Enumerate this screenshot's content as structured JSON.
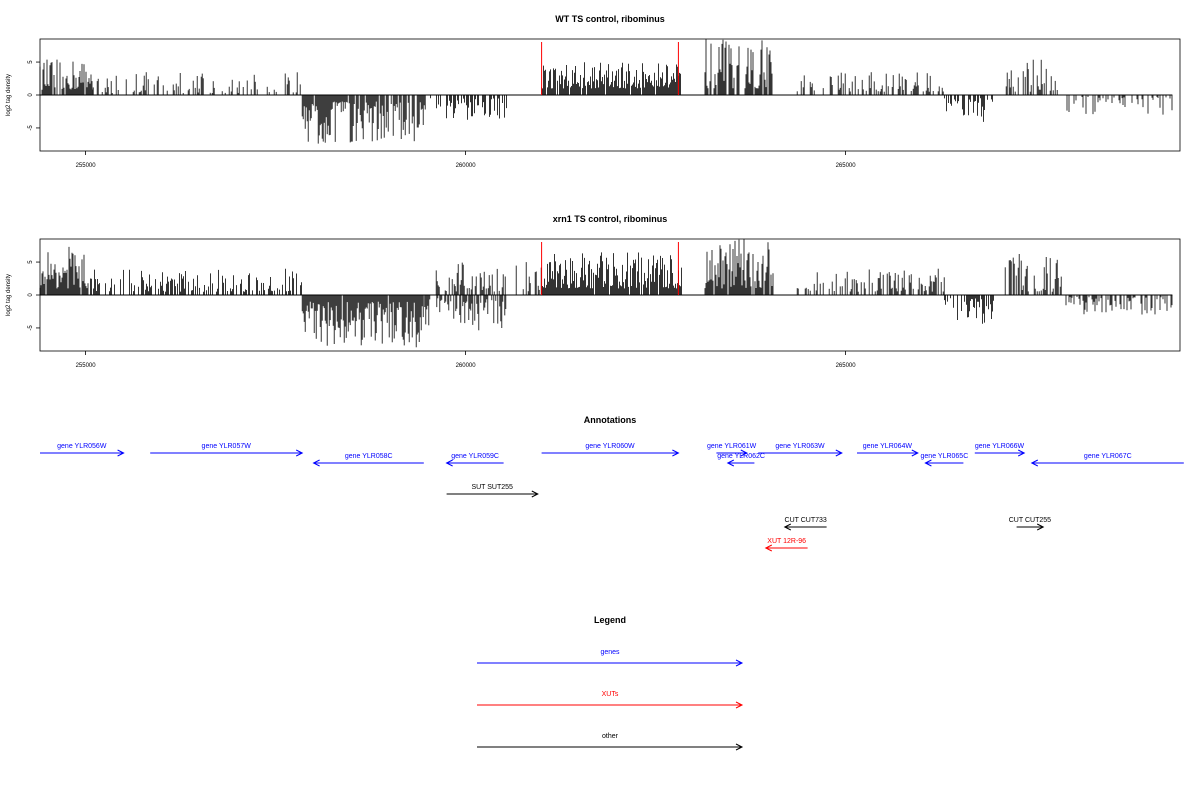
{
  "colors": {
    "gene": "#0000ff",
    "xut": "#ff0000",
    "other": "#000000",
    "marker": "#ff0000"
  },
  "chart_data": [
    {
      "type": "bar",
      "title": "WT TS control, ribominus",
      "ylabel": "log2 tag density",
      "xlim": [
        254400,
        269400
      ],
      "ylim": [
        -8.5,
        8.5
      ],
      "xticks": [
        255000,
        260000,
        265000
      ],
      "yticks": [
        -5,
        0,
        5
      ],
      "markers_x": [
        261000,
        262800
      ],
      "series_segments": [
        {
          "from": 254400,
          "to": 255100,
          "min": 0.8,
          "max": 5.5,
          "sign": 1,
          "density": 0.85
        },
        {
          "from": 255100,
          "to": 257850,
          "min": 0.3,
          "max": 3.5,
          "sign": 1,
          "density": 0.35
        },
        {
          "from": 257850,
          "to": 259500,
          "min": 1.0,
          "max": 7.5,
          "sign": -1,
          "density": 0.9
        },
        {
          "from": 259500,
          "to": 260550,
          "min": 0.5,
          "max": 4.0,
          "sign": -1,
          "density": 0.45
        },
        {
          "from": 261000,
          "to": 262850,
          "min": 1.0,
          "max": 5.0,
          "sign": 1,
          "density": 0.9
        },
        {
          "from": 263150,
          "to": 264050,
          "min": 1.0,
          "max": 8.5,
          "sign": 1,
          "density": 0.85
        },
        {
          "from": 264350,
          "to": 266300,
          "min": 0.5,
          "max": 3.5,
          "sign": 1,
          "density": 0.5
        },
        {
          "from": 266300,
          "to": 266950,
          "min": 0.5,
          "max": 4.5,
          "sign": -1,
          "density": 0.6
        },
        {
          "from": 267100,
          "to": 267850,
          "min": 0.5,
          "max": 5.5,
          "sign": 1,
          "density": 0.55
        },
        {
          "from": 267900,
          "to": 269300,
          "min": 0.3,
          "max": 3.0,
          "sign": -1,
          "density": 0.4
        }
      ]
    },
    {
      "type": "bar",
      "title": "xrn1 TS control, ribominus",
      "ylabel": "log2 tag density",
      "xlim": [
        254400,
        269400
      ],
      "ylim": [
        -8.5,
        8.5
      ],
      "xticks": [
        255000,
        260000,
        265000
      ],
      "yticks": [
        -5,
        0,
        5
      ],
      "markers_x": [
        261000,
        262800
      ],
      "series_segments": [
        {
          "from": 254400,
          "to": 255050,
          "min": 1.0,
          "max": 7.5,
          "sign": 1,
          "density": 0.9
        },
        {
          "from": 255050,
          "to": 257850,
          "min": 0.5,
          "max": 4.0,
          "sign": 1,
          "density": 0.55
        },
        {
          "from": 257850,
          "to": 259450,
          "min": 1.0,
          "max": 8.0,
          "sign": -1,
          "density": 0.95
        },
        {
          "from": 259450,
          "to": 260550,
          "min": 0.5,
          "max": 5.5,
          "sign": -1,
          "density": 0.6
        },
        {
          "from": 259600,
          "to": 261000,
          "min": 0.5,
          "max": 5.0,
          "sign": 1,
          "density": 0.5
        },
        {
          "from": 261000,
          "to": 262850,
          "min": 1.0,
          "max": 6.5,
          "sign": 1,
          "density": 0.95
        },
        {
          "from": 263150,
          "to": 264050,
          "min": 1.0,
          "max": 8.5,
          "sign": 1,
          "density": 0.9
        },
        {
          "from": 264350,
          "to": 266300,
          "min": 0.5,
          "max": 4.0,
          "sign": 1,
          "density": 0.55
        },
        {
          "from": 266300,
          "to": 266950,
          "min": 0.5,
          "max": 5.0,
          "sign": -1,
          "density": 0.7
        },
        {
          "from": 267100,
          "to": 267850,
          "min": 0.5,
          "max": 6.5,
          "sign": 1,
          "density": 0.6
        },
        {
          "from": 267900,
          "to": 269300,
          "min": 0.3,
          "max": 3.0,
          "sign": -1,
          "density": 0.55
        }
      ]
    }
  ],
  "annotations": {
    "title": "Annotations",
    "items": [
      {
        "label": "gene YLR056W",
        "kind": "gene",
        "start": 254400,
        "end": 255500,
        "dir": "+",
        "row": 0
      },
      {
        "label": "gene YLR057W",
        "kind": "gene",
        "start": 255850,
        "end": 257850,
        "dir": "+",
        "row": 0
      },
      {
        "label": "gene YLR058C",
        "kind": "gene",
        "start": 258000,
        "end": 259450,
        "dir": "-",
        "row": 1
      },
      {
        "label": "gene YLR059C",
        "kind": "gene",
        "start": 259750,
        "end": 260500,
        "dir": "-",
        "row": 1
      },
      {
        "label": "gene YLR060W",
        "kind": "gene",
        "start": 261000,
        "end": 262800,
        "dir": "+",
        "row": 0
      },
      {
        "label": "gene YLR061W",
        "kind": "gene",
        "start": 263300,
        "end": 263700,
        "dir": "+",
        "row": 0
      },
      {
        "label": "gene YLR062C",
        "kind": "gene",
        "start": 263450,
        "end": 263800,
        "dir": "-",
        "row": 1
      },
      {
        "label": "gene YLR063W",
        "kind": "gene",
        "start": 263850,
        "end": 264950,
        "dir": "+",
        "row": 0
      },
      {
        "label": "gene YLR064W",
        "kind": "gene",
        "start": 265150,
        "end": 265950,
        "dir": "+",
        "row": 0
      },
      {
        "label": "gene YLR065C",
        "kind": "gene",
        "start": 266050,
        "end": 266550,
        "dir": "-",
        "row": 1
      },
      {
        "label": "gene YLR066W",
        "kind": "gene",
        "start": 266700,
        "end": 267350,
        "dir": "+",
        "row": 0
      },
      {
        "label": "gene YLR067C",
        "kind": "gene",
        "start": 267450,
        "end": 269450,
        "dir": "-",
        "row": 1
      },
      {
        "label": "SUT SUT255",
        "kind": "other",
        "start": 259750,
        "end": 260950,
        "dir": "+",
        "row": 2
      },
      {
        "label": "CUT CUT733",
        "kind": "other",
        "start": 264200,
        "end": 264750,
        "dir": "-",
        "row": 3
      },
      {
        "label": "CUT CUT255",
        "kind": "other",
        "start": 267250,
        "end": 267600,
        "dir": "+",
        "row": 3
      },
      {
        "label": "XUT 12R-96",
        "kind": "xut",
        "start": 263950,
        "end": 264500,
        "dir": "-",
        "row": 4
      }
    ]
  },
  "legend": {
    "title": "Legend",
    "items": [
      {
        "label": "genes",
        "kind": "gene"
      },
      {
        "label": "XUTs",
        "kind": "xut"
      },
      {
        "label": "other",
        "kind": "other"
      }
    ]
  }
}
